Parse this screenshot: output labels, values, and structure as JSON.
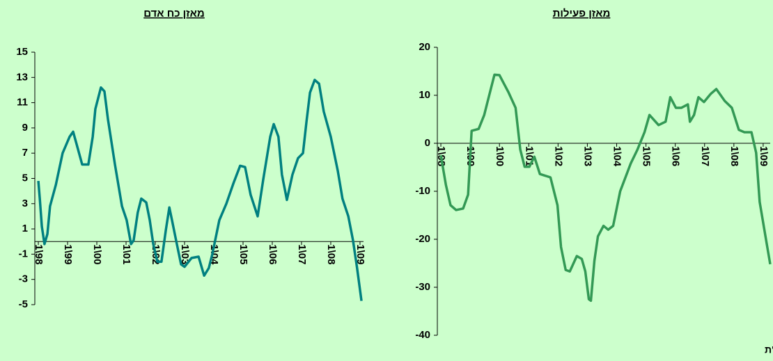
{
  "chart_data": [
    {
      "type": "line",
      "title": "מאזן כח אדם",
      "color": "#008080",
      "x": [
        1998.0,
        1998.05,
        1998.12,
        1998.21,
        1998.31,
        1998.4,
        1998.6,
        1998.83,
        1999.07,
        1999.19,
        1999.31,
        1999.5,
        1999.71,
        1999.86,
        1999.95,
        2000.14,
        2000.26,
        2000.38,
        2000.62,
        2000.86,
        2001.02,
        2001.17,
        2001.26,
        2001.4,
        2001.52,
        2001.69,
        2001.81,
        2001.93,
        2002.07,
        2002.21,
        2002.36,
        2002.48,
        2002.57,
        2002.71,
        2002.88,
        2003.0,
        2003.24,
        2003.48,
        2003.67,
        2003.83,
        2003.95,
        2004.19,
        2004.43,
        2004.67,
        2004.9,
        2005.07,
        2005.26,
        2005.5,
        2005.69,
        2005.93,
        2006.05,
        2006.21,
        2006.33,
        2006.5,
        2006.69,
        2006.88,
        2007.05,
        2007.17,
        2007.29,
        2007.45,
        2007.6,
        2007.76,
        2008.0,
        2008.24,
        2008.4,
        2008.6,
        2008.76,
        2008.9,
        2009.05
      ],
      "values": [
        4.8,
        3.4,
        1.2,
        -0.2,
        0.6,
        2.8,
        4.5,
        7,
        8.3,
        8.7,
        7.7,
        6.1,
        6.1,
        8.3,
        10.5,
        12.2,
        11.9,
        9.7,
        6.1,
        2.8,
        1.7,
        -0.2,
        0.1,
        2.3,
        3.4,
        3.1,
        1.7,
        -0.2,
        -1.6,
        -1.6,
        0.9,
        2.7,
        1.7,
        0.1,
        -1.8,
        -2.0,
        -1.3,
        -1.2,
        -2.7,
        -2.1,
        -1.0,
        1.7,
        3.0,
        4.6,
        6.0,
        5.9,
        3.7,
        2.0,
        4.9,
        8.3,
        9.3,
        8.3,
        5.3,
        3.3,
        5.3,
        6.6,
        7.0,
        9.5,
        11.8,
        12.8,
        12.5,
        10.3,
        8.3,
        5.6,
        3.4,
        2.0,
        0.1,
        -2.1,
        -4.7
      ],
      "xlim": [
        1997.88,
        2009.12
      ],
      "xticks": [
        {
          "value": 1998,
          "label": "1\\98"
        },
        {
          "value": 1999,
          "label": "1\\99"
        },
        {
          "value": 2000,
          "label": "1\\00"
        },
        {
          "value": 2001,
          "label": "1\\01"
        },
        {
          "value": 2002,
          "label": "1\\02"
        },
        {
          "value": 2003,
          "label": "1\\03"
        },
        {
          "value": 2004,
          "label": "1\\04"
        },
        {
          "value": 2005,
          "label": "1\\05"
        },
        {
          "value": 2006,
          "label": "1\\06"
        },
        {
          "value": 2007,
          "label": "1\\07"
        },
        {
          "value": 2008,
          "label": "1\\08"
        },
        {
          "value": 2009,
          "label": "1\\09"
        }
      ],
      "ylim": [
        -5,
        15
      ],
      "yticks": [
        -5,
        -3,
        -1,
        1,
        3,
        5,
        7,
        9,
        11,
        13,
        15
      ]
    },
    {
      "type": "line",
      "title": "מאזן פעילות",
      "color": "#339955",
      "x": [
        1998.0,
        1998.17,
        1998.33,
        1998.52,
        1998.76,
        1998.93,
        1999.05,
        1999.29,
        1999.48,
        1999.6,
        1999.83,
        2000.0,
        2000.31,
        2000.55,
        2000.71,
        2000.86,
        2001.02,
        2001.19,
        2001.38,
        2001.74,
        2001.98,
        2002.1,
        2002.26,
        2002.4,
        2002.64,
        2002.81,
        2002.93,
        2003.05,
        2003.12,
        2003.24,
        2003.36,
        2003.55,
        2003.71,
        2003.88,
        2004.12,
        2004.48,
        2004.71,
        2004.95,
        2005.12,
        2005.43,
        2005.67,
        2005.83,
        2006.02,
        2006.21,
        2006.43,
        2006.5,
        2006.64,
        2006.79,
        2006.98,
        2007.21,
        2007.4,
        2007.69,
        2007.93,
        2008.17,
        2008.36,
        2008.6,
        2008.76,
        2008.88,
        2009.12,
        2009.24
      ],
      "values": [
        -2.5,
        -8.6,
        -12.9,
        -13.9,
        -13.6,
        -10.7,
        2.6,
        3.0,
        5.9,
        8.8,
        14.3,
        14.2,
        10.6,
        7.4,
        -1.3,
        -4.9,
        -4.9,
        -2.8,
        -6.4,
        -7.1,
        -12.9,
        -21.6,
        -26.4,
        -26.7,
        -23.5,
        -24.1,
        -26.7,
        -32.5,
        -32.8,
        -24.5,
        -19.4,
        -17.2,
        -18.0,
        -17.2,
        -10.0,
        -4.2,
        -1.3,
        2.3,
        5.9,
        3.8,
        4.5,
        9.6,
        7.4,
        7.4,
        8.1,
        4.5,
        5.9,
        9.6,
        8.6,
        10.3,
        11.3,
        8.8,
        7.4,
        2.8,
        2.3,
        2.3,
        -2.0,
        -12.2,
        -20.9,
        -25.2
      ],
      "xlim": [
        1997.88,
        2009.24
      ],
      "xticks": [
        {
          "value": 1998,
          "label": "1\\98"
        },
        {
          "value": 1999,
          "label": "1\\99"
        },
        {
          "value": 2000,
          "label": "1\\00"
        },
        {
          "value": 2001,
          "label": "1\\01"
        },
        {
          "value": 2002,
          "label": "1\\02"
        },
        {
          "value": 2003,
          "label": "1\\03"
        },
        {
          "value": 2004,
          "label": "1\\04"
        },
        {
          "value": 2005,
          "label": "1\\05"
        },
        {
          "value": 2006,
          "label": "1\\06"
        },
        {
          "value": 2007,
          "label": "1\\07"
        },
        {
          "value": 2008,
          "label": "1\\08"
        },
        {
          "value": 2009,
          "label": "1\\09"
        }
      ],
      "ylim": [
        -40,
        20
      ],
      "yticks": [
        -40,
        -30,
        -20,
        -10,
        0,
        10,
        20
      ]
    }
  ],
  "source": "מקור: מינהל מחקר וכלכלה, משרד התמ\"ת"
}
